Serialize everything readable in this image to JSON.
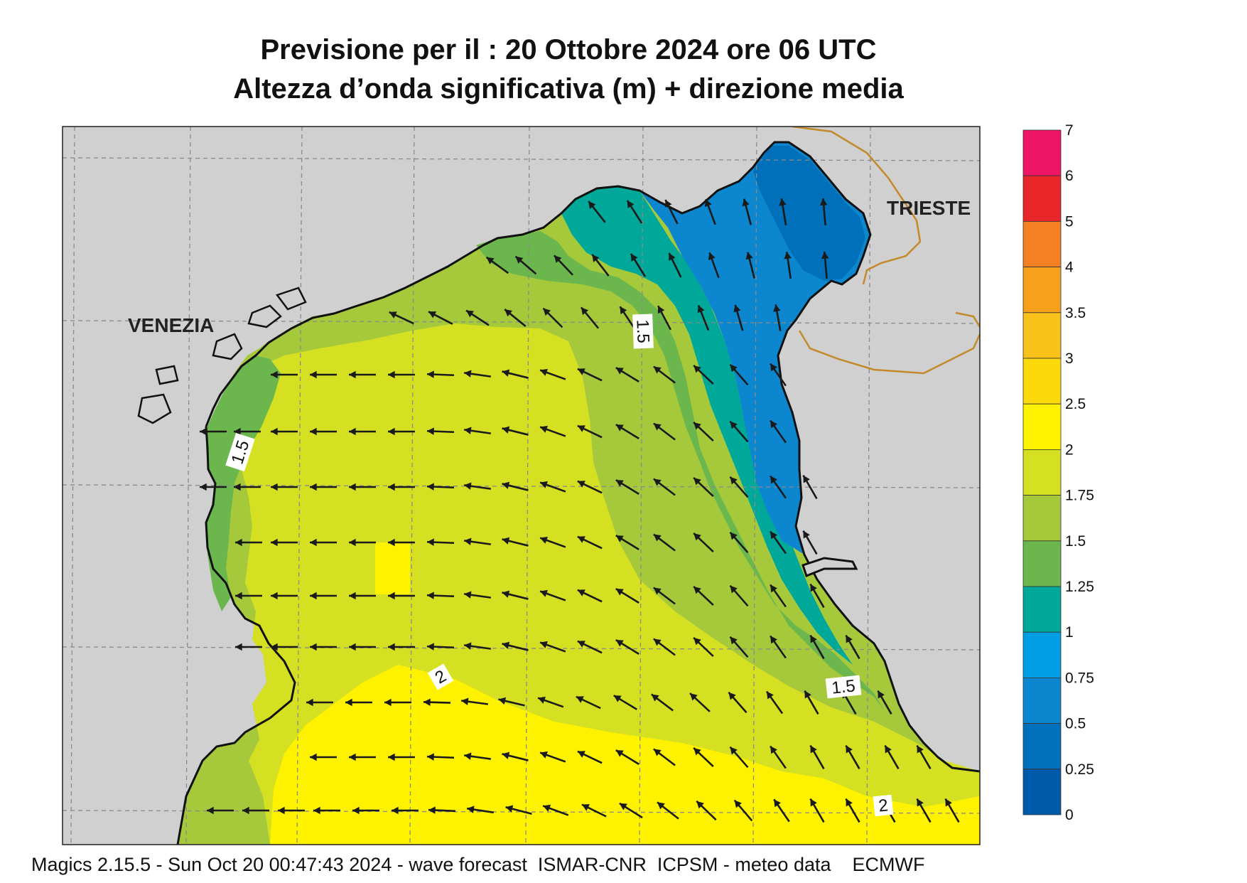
{
  "title": {
    "line1": "Previsione per il  :  20  Ottobre  2024   ore 06 UTC",
    "line2": "Altezza d’onda significativa (m) + direzione media"
  },
  "cities": {
    "venezia": "VENEZIA",
    "trieste": "TRIESTE"
  },
  "contour_labels": [
    "1.5",
    "1.5",
    "1.5",
    "2",
    "2"
  ],
  "legend": {
    "ticks": [
      "7",
      "6",
      "5",
      "4",
      "3.5",
      "3",
      "2.5",
      "2",
      "1.75",
      "1.5",
      "1.25",
      "1",
      "0.75",
      "0.5",
      "0.25",
      "0"
    ],
    "colors": [
      "#ee1566",
      "#e8262a",
      "#f58024",
      "#f6a01c",
      "#f8c21a",
      "#fbd90a",
      "#fff200",
      "#d4e021",
      "#a5c93b",
      "#6bb74e",
      "#00a89a",
      "#009fe3",
      "#0b86cf",
      "#0070bb",
      "#0059a9"
    ]
  },
  "colors": {
    "land": "#d0d0d0",
    "grid": "#8a8a8a",
    "border": "#c38a2b",
    "arrow": "#1a1a1a"
  },
  "footer": "Magics 2.15.5 - Sun Oct 20 00:47:43 2024 - wave forecast  ISMAR-CNR  ICPSM - meteo data    ECMWF"
}
